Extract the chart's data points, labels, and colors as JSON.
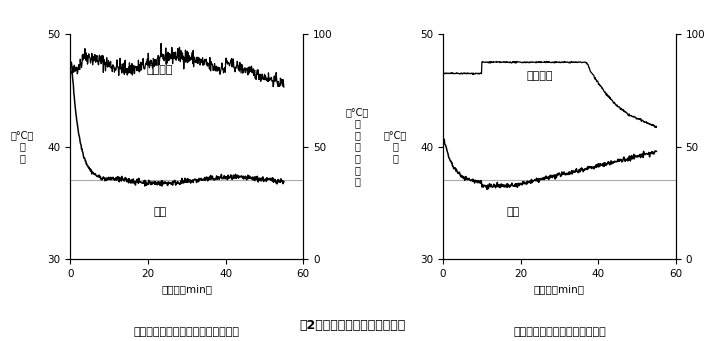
{
  "fig_width": 7.04,
  "fig_height": 3.41,
  "dpi": 100,
  "background_color": "#ffffff",
  "left_chart": {
    "subtitle": "ファジィ推論を用いた茶温制御結果",
    "xlabel": "時　間（min）",
    "ylabel_left_chars": [
      "（°C）",
      "温",
      "茶"
    ],
    "ylabel_right_chars": [
      "（°C）",
      "度",
      "温",
      "風",
      "熱",
      "定",
      "設"
    ],
    "xlim": [
      0,
      60
    ],
    "ylim_left": [
      30,
      50
    ],
    "ylim_right": [
      0,
      100
    ],
    "xticks": [
      0,
      20,
      40,
      60
    ],
    "yticks_left": [
      30,
      40,
      50
    ],
    "yticks_right": [
      0,
      50,
      100
    ],
    "label_hotwind": "熱風温度",
    "label_tea": "茶温",
    "setpoint_value": 37.0
  },
  "right_chart": {
    "subtitle": "従来の制御による茶温制御結果",
    "xlabel": "時　間（min）",
    "ylabel_left_chars": [
      "（°C）",
      "温",
      "茶"
    ],
    "ylabel_right_chars": [
      "（°C）",
      "度",
      "温",
      "風",
      "熱",
      "定",
      "設"
    ],
    "xlim": [
      0,
      60
    ],
    "ylim_left": [
      30,
      50
    ],
    "ylim_right": [
      0,
      100
    ],
    "xticks": [
      0,
      20,
      40,
      60
    ],
    "yticks_left": [
      30,
      40,
      50
    ],
    "yticks_right": [
      0,
      50,
      100
    ],
    "label_hotwind": "熱風温度",
    "label_tea": "茶温",
    "setpoint_value": 37.0
  },
  "figure_caption": "図2　粗揉工程の茶温制御の例",
  "line_color": "#000000",
  "setpoint_color": "#aaaaaa",
  "font_size_tick": 7.5,
  "font_size_label": 7.5,
  "font_size_caption": 9,
  "font_size_annotation": 8,
  "font_size_subtitle": 8,
  "font_size_ylabel": 7
}
